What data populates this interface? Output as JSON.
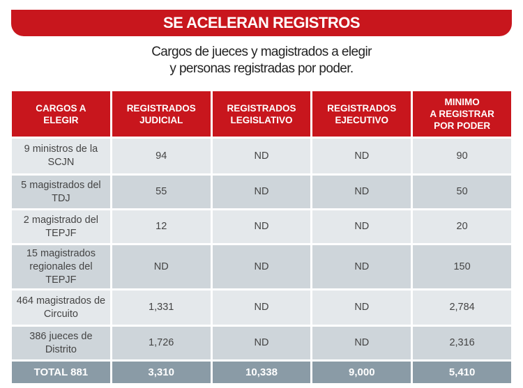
{
  "title": "SE ACELERAN REGISTROS",
  "subtitle": [
    "Cargos de jueces y magistrados a elegir",
    "y personas registradas por poder."
  ],
  "table": {
    "headers": [
      "CARGOS A ELEGIR",
      "REGISTRADOS JUDICIAL",
      "REGISTRADOS LEGISLATIVO",
      "REGISTRADOS EJECUTIVO",
      "MINIMO A REGISTRAR POR PODER"
    ],
    "rows": [
      [
        "9 ministros de la SCJN",
        "94",
        "ND",
        "ND",
        "90"
      ],
      [
        "5 magistrados del TDJ",
        "55",
        "ND",
        "ND",
        "50"
      ],
      [
        "2 magistrado del TEPJF",
        "12",
        "ND",
        "ND",
        "20"
      ],
      [
        "15 magistrados regionales del TEPJF",
        "ND",
        "ND",
        "ND",
        "150"
      ],
      [
        "464 magistrados de Circuito",
        "1,331",
        "ND",
        "ND",
        "2,784"
      ],
      [
        "386 jueces de Distrito",
        "1,726",
        "ND",
        "ND",
        "2,316"
      ]
    ],
    "total": [
      "TOTAL 881",
      "3,310",
      "10,338",
      "9,000",
      "5,410"
    ]
  }
}
